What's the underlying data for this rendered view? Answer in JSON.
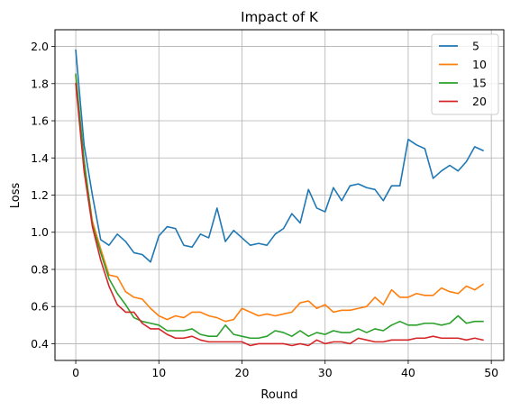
{
  "chart_data": {
    "type": "line",
    "title": "Impact of K",
    "xlabel": "Round",
    "ylabel": "Loss",
    "xlim": [
      -2.5,
      51.5
    ],
    "ylim": [
      0.31,
      2.09
    ],
    "xticks": [
      0,
      10,
      20,
      30,
      40,
      50
    ],
    "xtick_labels": [
      "0",
      "10",
      "20",
      "30",
      "40",
      "50"
    ],
    "yticks": [
      0.4,
      0.6,
      0.8,
      1.0,
      1.2,
      1.4,
      1.6,
      1.8,
      2.0
    ],
    "ytick_labels": [
      "0.4",
      "0.6",
      "0.8",
      "1.0",
      "1.2",
      "1.4",
      "1.6",
      "1.8",
      "2.0"
    ],
    "grid": true,
    "legend_position": "top-right",
    "x": [
      0,
      1,
      2,
      3,
      4,
      5,
      6,
      7,
      8,
      9,
      10,
      11,
      12,
      13,
      14,
      15,
      16,
      17,
      18,
      19,
      20,
      21,
      22,
      23,
      24,
      25,
      26,
      27,
      28,
      29,
      30,
      31,
      32,
      33,
      34,
      35,
      36,
      37,
      38,
      39,
      40,
      41,
      42,
      43,
      44,
      45,
      46,
      47,
      48,
      49
    ],
    "series": [
      {
        "name": "5",
        "color": "#1f77b4",
        "values": [
          1.98,
          1.47,
          1.2,
          0.96,
          0.93,
          0.99,
          0.95,
          0.89,
          0.88,
          0.84,
          0.98,
          1.03,
          1.02,
          0.93,
          0.92,
          0.99,
          0.97,
          1.13,
          0.95,
          1.01,
          0.97,
          0.93,
          0.94,
          0.93,
          0.99,
          1.02,
          1.1,
          1.05,
          1.23,
          1.13,
          1.11,
          1.24,
          1.17,
          1.25,
          1.26,
          1.24,
          1.23,
          1.17,
          1.25,
          1.25,
          1.5,
          1.47,
          1.45,
          1.29,
          1.33,
          1.36,
          1.33,
          1.38,
          1.46,
          1.44
        ]
      },
      {
        "name": "10",
        "color": "#ff7f0e",
        "values": [
          1.84,
          1.37,
          1.06,
          0.91,
          0.77,
          0.76,
          0.68,
          0.65,
          0.64,
          0.59,
          0.55,
          0.53,
          0.55,
          0.54,
          0.57,
          0.57,
          0.55,
          0.54,
          0.52,
          0.53,
          0.59,
          0.57,
          0.55,
          0.56,
          0.55,
          0.56,
          0.57,
          0.62,
          0.63,
          0.59,
          0.61,
          0.57,
          0.58,
          0.58,
          0.59,
          0.6,
          0.65,
          0.61,
          0.69,
          0.65,
          0.65,
          0.67,
          0.66,
          0.66,
          0.7,
          0.68,
          0.67,
          0.71,
          0.69,
          0.72
        ]
      },
      {
        "name": "15",
        "color": "#2ca02c",
        "values": [
          1.85,
          1.39,
          1.04,
          0.89,
          0.75,
          0.67,
          0.61,
          0.54,
          0.52,
          0.51,
          0.5,
          0.47,
          0.47,
          0.47,
          0.48,
          0.45,
          0.44,
          0.44,
          0.5,
          0.45,
          0.44,
          0.43,
          0.43,
          0.44,
          0.47,
          0.46,
          0.44,
          0.47,
          0.44,
          0.46,
          0.45,
          0.47,
          0.46,
          0.46,
          0.48,
          0.46,
          0.48,
          0.47,
          0.5,
          0.52,
          0.5,
          0.5,
          0.51,
          0.51,
          0.5,
          0.51,
          0.55,
          0.51,
          0.52,
          0.52
        ]
      },
      {
        "name": "20",
        "color": "#d62728",
        "values": [
          1.8,
          1.33,
          1.03,
          0.85,
          0.71,
          0.61,
          0.57,
          0.57,
          0.51,
          0.48,
          0.48,
          0.45,
          0.43,
          0.43,
          0.44,
          0.42,
          0.41,
          0.41,
          0.41,
          0.41,
          0.41,
          0.39,
          0.4,
          0.4,
          0.4,
          0.4,
          0.39,
          0.4,
          0.39,
          0.42,
          0.4,
          0.41,
          0.41,
          0.4,
          0.43,
          0.42,
          0.41,
          0.41,
          0.42,
          0.42,
          0.42,
          0.43,
          0.43,
          0.44,
          0.43,
          0.43,
          0.43,
          0.42,
          0.43,
          0.42
        ]
      }
    ]
  }
}
